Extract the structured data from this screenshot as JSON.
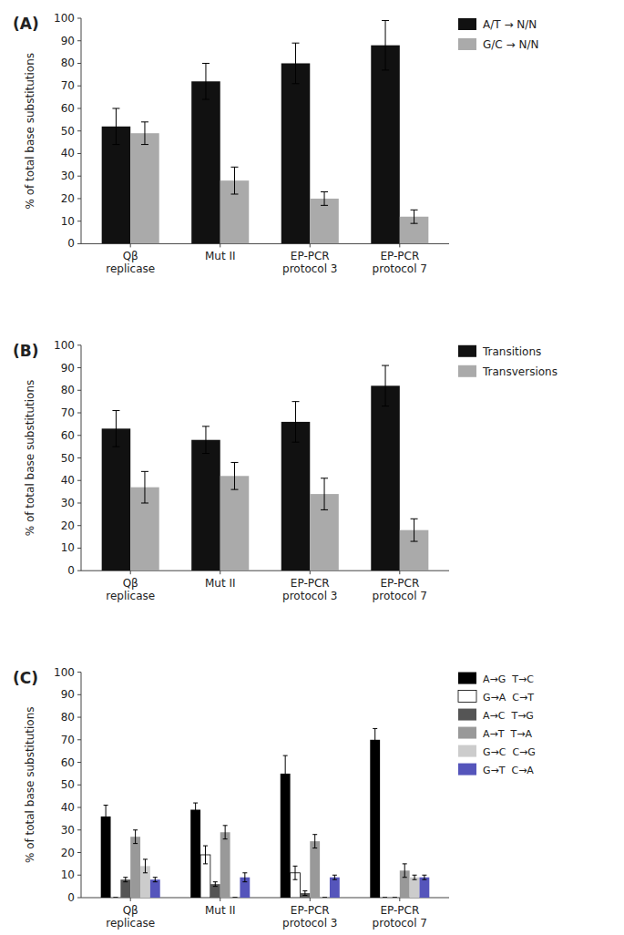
{
  "chart_data": [
    {
      "type": "bar",
      "title": "(A)",
      "categories": [
        "Qβ\nreplicase",
        "Mut II",
        "EP-PCR\nprotocol 3",
        "EP-PCR\nprotocol 7"
      ],
      "series": [
        {
          "name": "A/T → N/N",
          "color": "#111111",
          "values": [
            52,
            72,
            80,
            88
          ],
          "errors": [
            8,
            8,
            9,
            11
          ]
        },
        {
          "name": "G/C → N/N",
          "color": "#aaaaaa",
          "values": [
            49,
            28,
            20,
            12
          ],
          "errors": [
            5,
            6,
            3,
            3
          ]
        }
      ],
      "ylabel": "% of total base substitutions",
      "ylim": [
        0,
        100
      ],
      "yticks": [
        0,
        10,
        20,
        30,
        40,
        50,
        60,
        70,
        80,
        90,
        100
      ],
      "grid": false,
      "legend": "right"
    },
    {
      "type": "bar",
      "title": "(B)",
      "categories": [
        "Qβ\nreplicase",
        "Mut II",
        "EP-PCR\nprotocol 3",
        "EP-PCR\nprotocol 7"
      ],
      "series": [
        {
          "name": "Transitions",
          "color": "#111111",
          "values": [
            63,
            58,
            66,
            82
          ],
          "errors": [
            8,
            6,
            9,
            9
          ]
        },
        {
          "name": "Transversions",
          "color": "#aaaaaa",
          "values": [
            37,
            42,
            34,
            18
          ],
          "errors": [
            7,
            6,
            7,
            5
          ]
        }
      ],
      "ylabel": "% of total base substitutions",
      "ylim": [
        0,
        100
      ],
      "yticks": [
        0,
        10,
        20,
        30,
        40,
        50,
        60,
        70,
        80,
        90,
        100
      ],
      "grid": false,
      "legend": "right"
    },
    {
      "type": "bar",
      "title": "(C)",
      "categories": [
        "Qβ\nreplicase",
        "Mut II",
        "EP-PCR\nprotocol 3",
        "EP-PCR\nprotocol 7"
      ],
      "series": [
        {
          "name": "A→G  T→C",
          "color": "#000000",
          "values": [
            36,
            39,
            55,
            70
          ],
          "errors": [
            5,
            3,
            8,
            5
          ]
        },
        {
          "name": "G→A  C→T",
          "color": "#ffffff",
          "values": [
            0,
            19,
            11,
            0
          ],
          "errors": [
            0,
            4,
            3,
            0
          ]
        },
        {
          "name": "A→C  T→G",
          "color": "#555555",
          "values": [
            8,
            6,
            2,
            0
          ],
          "errors": [
            1,
            1,
            1,
            0
          ]
        },
        {
          "name": "A→T  T→A",
          "color": "#999999",
          "values": [
            27,
            29,
            25,
            12
          ],
          "errors": [
            3,
            3,
            3,
            3
          ]
        },
        {
          "name": "G→C  C→G",
          "color": "#cccccc",
          "values": [
            14,
            0,
            0,
            9
          ],
          "errors": [
            3,
            0,
            0,
            1
          ]
        },
        {
          "name": "G→T  C→A",
          "color": "#5555bb",
          "values": [
            8,
            9,
            9,
            9
          ],
          "errors": [
            1,
            2,
            1,
            1
          ]
        }
      ],
      "ylabel": "% of total base substitutions",
      "ylim": [
        0,
        100
      ],
      "yticks": [
        0,
        10,
        20,
        30,
        40,
        50,
        60,
        70,
        80,
        90,
        100
      ],
      "grid": false,
      "legend": "right"
    }
  ]
}
